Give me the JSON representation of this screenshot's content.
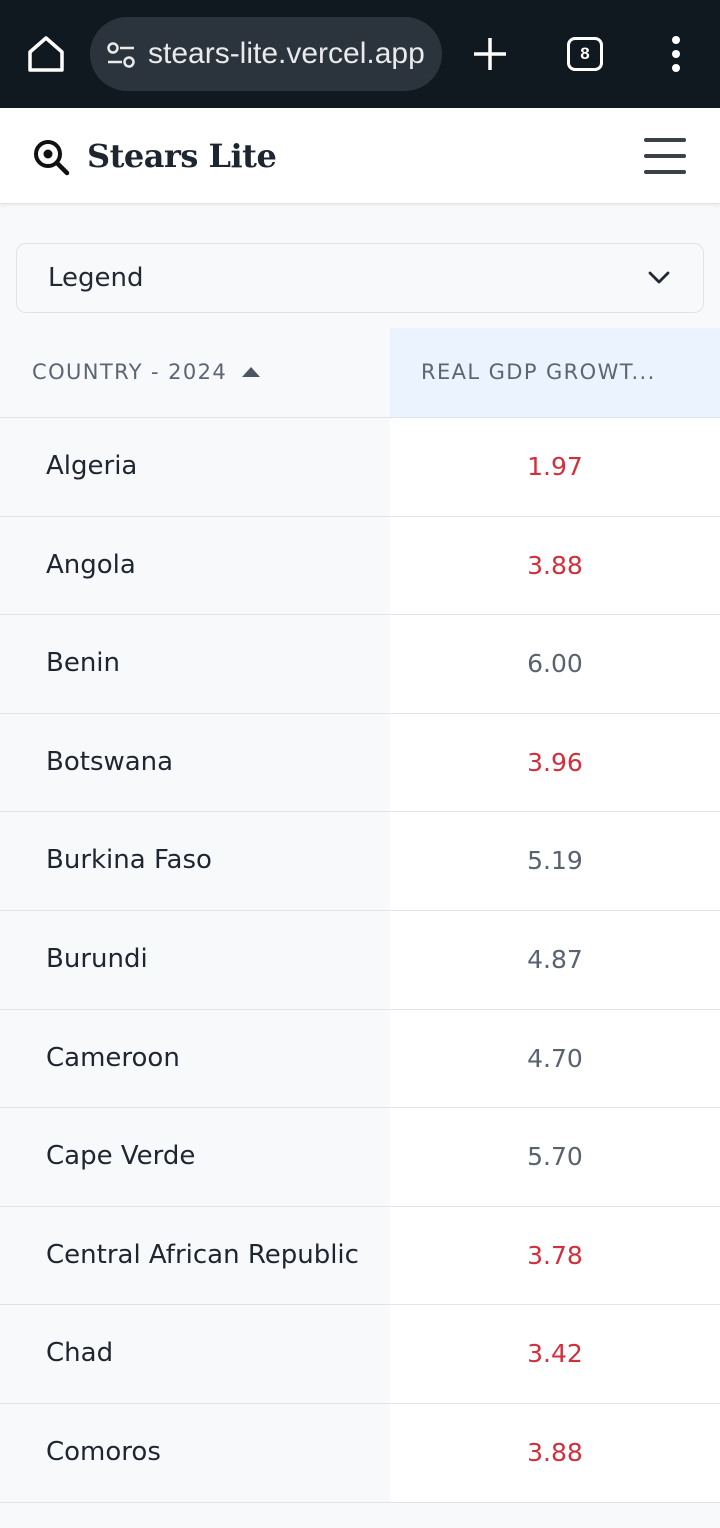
{
  "browser": {
    "url": "stears-lite.vercel.app",
    "tab_count": "8",
    "icons": [
      "home-icon",
      "site-settings-icon",
      "new-tab-icon",
      "tab-switcher-icon",
      "more-menu-icon"
    ]
  },
  "header": {
    "brand": "Stears Lite",
    "icons": [
      "search-logo-icon",
      "hamburger-menu-icon"
    ]
  },
  "legend": {
    "label": "Legend"
  },
  "table": {
    "columns": [
      "COUNTRY - 2024",
      "REAL GDP GROWT..."
    ],
    "rows": [
      {
        "country": "Algeria",
        "value": "1.97",
        "status": "low"
      },
      {
        "country": "Angola",
        "value": "3.88",
        "status": "low"
      },
      {
        "country": "Benin",
        "value": "6.00",
        "status": "normal"
      },
      {
        "country": "Botswana",
        "value": "3.96",
        "status": "low"
      },
      {
        "country": "Burkina Faso",
        "value": "5.19",
        "status": "normal"
      },
      {
        "country": "Burundi",
        "value": "4.87",
        "status": "normal"
      },
      {
        "country": "Cameroon",
        "value": "4.70",
        "status": "normal"
      },
      {
        "country": "Cape Verde",
        "value": "5.70",
        "status": "normal"
      },
      {
        "country": "Central African Republic",
        "value": "3.78",
        "status": "low"
      },
      {
        "country": "Chad",
        "value": "3.42",
        "status": "low"
      },
      {
        "country": "Comoros",
        "value": "3.88",
        "status": "low"
      }
    ]
  },
  "colors": {
    "chrome_bg": "#101820",
    "low_value": "#d22f3c",
    "normal_value": "#5a6270",
    "active_header": "#eaf3fe"
  }
}
